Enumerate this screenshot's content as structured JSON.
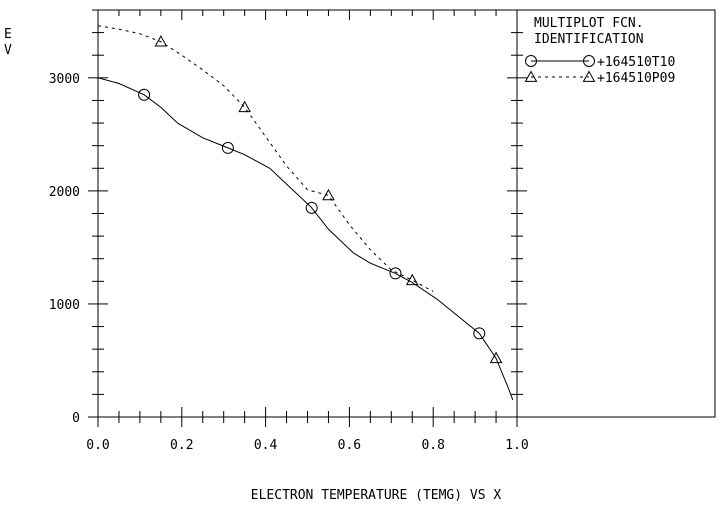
{
  "chart_data": {
    "type": "line",
    "ylabel": "E\nV",
    "xlabel": "ELECTRON TEMPERATURE (TEMG) VS X",
    "xlim": [
      0.0,
      1.0
    ],
    "ylim": [
      0,
      3600
    ],
    "xticks": [
      "0.0",
      "0.2",
      "0.4",
      "0.6",
      "0.8",
      "1.0"
    ],
    "yticks": [
      "0",
      "1000",
      "2000",
      "3000"
    ],
    "legend": {
      "placement": "right panel",
      "title_line1": "MULTIPLOT FCN.",
      "title_line2": "IDENTIFICATION"
    },
    "series": [
      {
        "name": "+164510T10",
        "style": "solid",
        "marker": "circle",
        "x": [
          0.0,
          0.05,
          0.11,
          0.15,
          0.19,
          0.25,
          0.31,
          0.35,
          0.41,
          0.45,
          0.51,
          0.55,
          0.61,
          0.65,
          0.71,
          0.75,
          0.81,
          0.85,
          0.91,
          0.95,
          0.98,
          0.99
        ],
        "values": [
          3000,
          2950,
          2850,
          2740,
          2600,
          2470,
          2380,
          2320,
          2200,
          2060,
          1850,
          1660,
          1450,
          1360,
          1270,
          1190,
          1040,
          920,
          740,
          520,
          250,
          150
        ],
        "markers_x": [
          0.11,
          0.31,
          0.51,
          0.71,
          0.91
        ],
        "markers_y": [
          2850,
          2380,
          1850,
          1270,
          740
        ]
      },
      {
        "name": "+164510P09",
        "style": "dashed",
        "marker": "triangle",
        "x": [
          0.0,
          0.05,
          0.1,
          0.15,
          0.2,
          0.25,
          0.3,
          0.35,
          0.4,
          0.45,
          0.5,
          0.55,
          0.6,
          0.65,
          0.7,
          0.75,
          0.8
        ],
        "values": [
          3460,
          3430,
          3390,
          3320,
          3200,
          3070,
          2930,
          2740,
          2480,
          2220,
          2010,
          1960,
          1700,
          1480,
          1300,
          1210,
          1110
        ],
        "markers_x": [
          0.15,
          0.35,
          0.55,
          0.75,
          0.95
        ],
        "markers_y": [
          3320,
          2740,
          1960,
          1210,
          520
        ]
      }
    ]
  }
}
